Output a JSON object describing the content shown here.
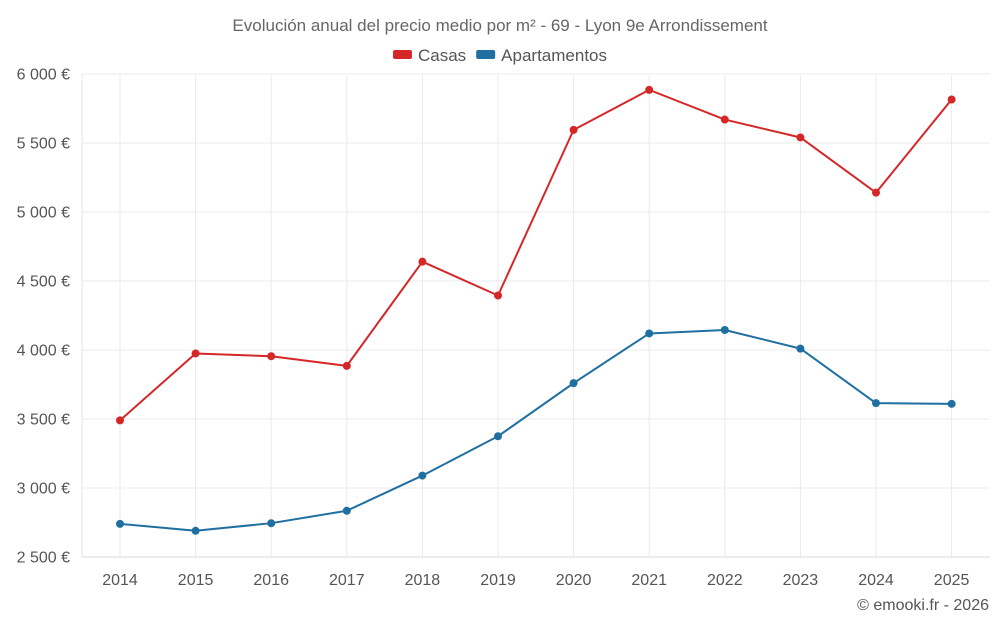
{
  "chart_data": {
    "type": "line",
    "title": "Evolución anual del precio medio por m² - 69 - Lyon 9e Arrondissement",
    "xlabel": "",
    "ylabel": "",
    "categories": [
      "2014",
      "2015",
      "2016",
      "2017",
      "2018",
      "2019",
      "2020",
      "2021",
      "2022",
      "2023",
      "2024",
      "2025"
    ],
    "series": [
      {
        "name": "Casas",
        "color": "#d62728",
        "values": [
          3490,
          3975,
          3955,
          3885,
          4640,
          4395,
          5595,
          5885,
          5670,
          5540,
          5140,
          5815
        ]
      },
      {
        "name": "Apartamentos",
        "color": "#1f6fa0",
        "values": [
          2740,
          2690,
          2745,
          2835,
          3090,
          3375,
          3760,
          4120,
          4145,
          4010,
          3615,
          3610
        ]
      }
    ],
    "ylim": [
      2500,
      6000
    ],
    "yticks": [
      2500,
      3000,
      3500,
      4000,
      4500,
      5000,
      5500,
      6000
    ],
    "ytick_labels": [
      "2 500 €",
      "3 000 €",
      "3 500 €",
      "4 000 €",
      "4 500 €",
      "5 000 €",
      "5 500 €",
      "6 000 €"
    ],
    "grid": true,
    "legend_position": "top-center"
  },
  "footer": {
    "copyright": "© emooki.fr - 2026"
  }
}
